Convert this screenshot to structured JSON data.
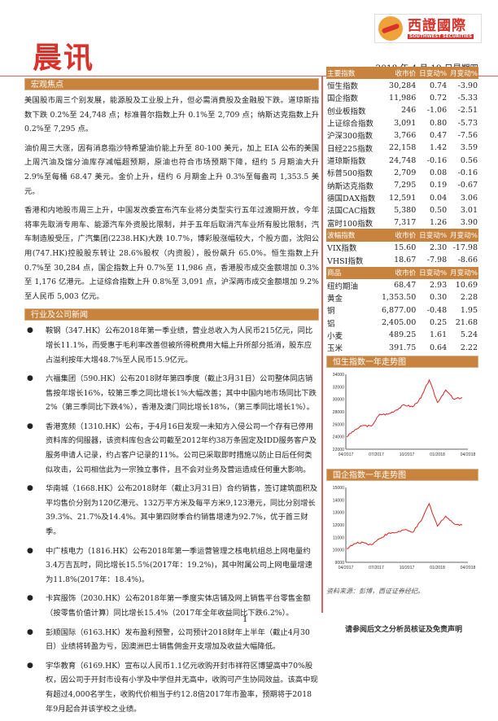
{
  "header": {
    "title": "晨讯",
    "logo_cn": "西證國際",
    "logo_en": "SOUTHWEST SECURITIES",
    "date": "2018 年 4 月 19 日星期四"
  },
  "macro": {
    "heading": "宏观焦点",
    "paragraphs": [
      "美国股市周三个别发展，能源股及工业股上升，但必需消费股及金融股下跌。道琼斯指数下跌 0.2%至 24,748 点；标准普尔指数上升 0.1%至 2,709 点；纳斯达克指数上升 0.2%至 7,295 点。",
      "油价周三大涨，因有消息指沙特希望油价能上升至 80-100 美元，加上 EIA 公布的美国上周汽油及馏分油库存减幅超预期，原油也符合市场预期下降，纽约 5 月期油大升 2.9%至每桶 68.47 美元。金价上升，纽约 6 月期金上升 0.3%至每盎司 1,353.5 美元。",
      "香港和内地股市周三上升，中国发改委宣布汽车业将分类型实行五年过渡期开放，今年将率先取消专用车、能源汽车外资股比限制，并于五年后取消汽车业所有股比限制，汽车制造股受压，广汽集团(2238.HK)大跌 10.7%，博彩股涨幅较大，个股方面，沈阳公用(747.HK)控股股东转让 28.6%股权（内资股），股份飙升 65.0%。恒生指数上升 0.7%至 30,284 点，国企指数上升 0.7%至 11,986 点，香港股市成交金额增加 0.3%至 1,176 亿港元。上证综合指数上升 0.8%至 3,091 点，沪深两市成交金额增加 9.2%至人民币 5,003 亿元。"
    ]
  },
  "news": {
    "heading": "行业及公司新闻",
    "items": [
      "鞍钢（347.HK）公布2018年第一季业绩，营业总收入为人民币215亿元，同比增长11.1%，而受惠于毛利率改善但被所得税费用大幅上升所部分抵消，股东应占溢利按年大增48.7%至人民币15.9亿元。",
      "六福集团（590.HK）公布2018财年第四季度（截止3月31日）公司整体同店销售按年增长16%，较第三季之同比增长1%大幅改善；其中中国内地市场同比下跌2%（第三季同比下跌4%），香港及澳门同比增长18%，（第三季同比增长1%）。",
      "香港宽频（1310.HK）公布，于4月16日发现一未知方入侵公司一个存有已停用资料库的伺服器，该资料库包含公司截至2012年约38万条固定及IDD服务客户及服务申请人记录，约占客户记录的11%。公司已采取即时措施以防止日后任何类似攻击，公司相信此为一宗独立事件，且不会对业务及营运造成任何重大影响。",
      "华南城（1668.HK）公布2018财年（截止3月31日）合约销售，签订建筑面积及平均售价分别为120亿港元、132万平方米及每平方米9,123港元，同比分别增长39.3%、21.7%及14.4%。其中第四财季合约销售增速为92.7%，优于首三财季。",
      "中广核电力（1816.HK）公布2018年第一季运营管理之核电机组总上网电量约3.4万吉瓦时，同比增长15.5%(2017年：19.2%)，其中附属公司上网电量增速为11.8%(2017年：18.4%)。",
      "卡宾服饰（2030.HK）公布2018年第一季度实体店铺及网上销售平台零售金额（按零售价值计算）同比增长15.4%（2017年全年收益同比下跌6.2%）。",
      "彭顺国际（6163.HK）发布盈利预警，公司预计2018财年上半年（截止4月30日）业绩将转盈为亏，因澳洲巴士销售佣金开支增加及收益大幅降低。",
      "宇华教育（6169.HK）宣布以人民币1.1亿元收购开封市祥符区博望高中70%股权，因公司于开封市设有小学及中学但并无高中，收购可产生协同效益。该高中现有超过4,000名学生，收购代价相当于约12.8倍2017年市盈率，预期将于2018年9月起合并该学校之业绩。"
    ]
  },
  "tables": [
    {
      "header": [
        "主要指数",
        "收市价",
        "日变动%",
        "月变动%"
      ],
      "rows": [
        [
          "恒生指数",
          "30,284",
          "0.74",
          "-3.90"
        ],
        [
          "国企指数",
          "11,986",
          "0.72",
          "-5.33"
        ],
        [
          "创业板指数",
          "246",
          "-1.06",
          "-2.51"
        ],
        [
          "上证综合指数",
          "3,091",
          "0.80",
          "-5.73"
        ],
        [
          "沪深300指数",
          "3,766",
          "0.47",
          "-7.56"
        ],
        [
          "日经225指数",
          "22,158",
          "1.42",
          "3.59"
        ],
        [
          "道琼斯指数",
          "24,748",
          "-0.16",
          "0.56"
        ],
        [
          "标普500指数",
          "2,709",
          "0.08",
          "-0.16"
        ],
        [
          "纳斯达克指数",
          "7,295",
          "0.19",
          "-0.67"
        ],
        [
          "德国DAX指数",
          "12,591",
          "0.04",
          "3.06"
        ],
        [
          "法国CAC指数",
          "5,380",
          "0.50",
          "3.01"
        ],
        [
          "富时100指数",
          "7,317",
          "1.26",
          "3.90"
        ]
      ]
    },
    {
      "header": [
        "波幅指数",
        "收市价",
        "日变动%",
        "月变动%"
      ],
      "rows": [
        [
          "VIX指数",
          "15.60",
          "2.30",
          "-17.98"
        ],
        [
          "VHSI指数",
          "18.67",
          "-7.98",
          "-8.66"
        ]
      ]
    },
    {
      "header": [
        "商品",
        "收市价",
        "日变动%",
        "月变动%"
      ],
      "rows": [
        [
          "纽约期油",
          "68.47",
          "2.93",
          "10.69"
        ],
        [
          "黄金",
          "1,353.50",
          "0.30",
          "2.28"
        ],
        [
          "铜",
          "6,877.00",
          "-0.48",
          "1.95"
        ],
        [
          "铝",
          "2,405.00",
          "0.25",
          "21.68"
        ],
        [
          "小麦",
          "489.25",
          "1.61",
          "5.24"
        ],
        [
          "玉米",
          "391.75",
          "0.64",
          "2.22"
        ]
      ]
    }
  ],
  "chart_data": [
    {
      "type": "line",
      "title": "恒生指数一年走势图",
      "x_ticks": [
        "04/2017",
        "07/2017",
        "10/2017",
        "01/2018",
        "04/2018"
      ],
      "y_ticks": [
        "34000",
        "32000",
        "30000",
        "28000",
        "26000",
        "24000",
        "22000"
      ],
      "ylim": [
        22000,
        34000
      ],
      "line_color": "#e02020",
      "x": [
        "2017-04",
        "2017-05",
        "2017-06",
        "2017-07",
        "2017-08",
        "2017-09",
        "2017-10",
        "2017-11",
        "2017-12",
        "2018-01a",
        "2018-01b",
        "2018-02",
        "2018-03a",
        "2018-03b",
        "2018-04"
      ],
      "values": [
        24000,
        25100,
        25800,
        25700,
        27600,
        27600,
        28300,
        29100,
        28800,
        30200,
        33100,
        29500,
        31500,
        30000,
        30300
      ]
    },
    {
      "type": "line",
      "title": "国企指数一年走势图",
      "x_ticks": [
        "04/2017",
        "07/2017",
        "10/2017",
        "01/2018",
        "04/2018"
      ],
      "y_ticks": [
        "15000",
        "14000",
        "13000",
        "12000",
        "11000",
        "10000",
        "9000"
      ],
      "ylim": [
        9000,
        15000
      ],
      "line_color": "#e02020",
      "x": [
        "2017-04",
        "2017-05",
        "2017-06",
        "2017-07",
        "2017-08",
        "2017-09",
        "2017-10",
        "2017-11",
        "2017-12",
        "2018-01a",
        "2018-01b",
        "2018-02",
        "2018-03a",
        "2018-03b",
        "2018-04"
      ],
      "values": [
        10100,
        10500,
        10600,
        10400,
        10900,
        11300,
        11400,
        11600,
        11400,
        12300,
        13700,
        11900,
        12700,
        12100,
        11986
      ]
    }
  ],
  "source": "资料来源：彭博，西证证券经纪。",
  "footer": {
    "page": "1",
    "disclaimer": "请参阅后文之分析员核证及免责声明"
  }
}
